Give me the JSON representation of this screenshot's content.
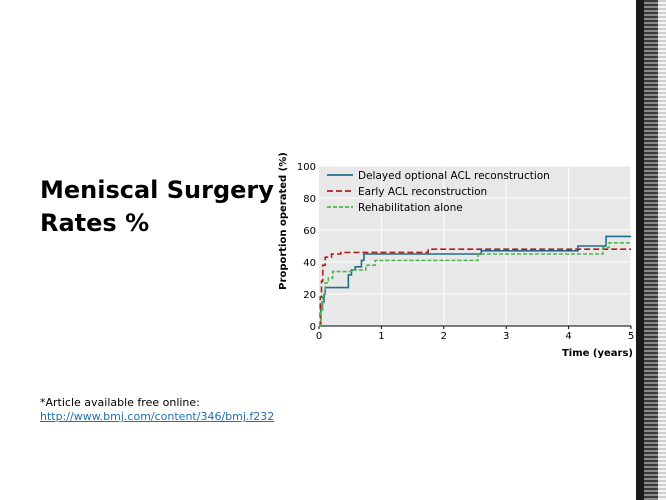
{
  "slide": {
    "title": "Meniscal Surgery\nRates %",
    "footnote_line1": "*Article available free online:",
    "footnote_link": "http://www.bmj.com/content/346/bmj.f232"
  },
  "chart_data": {
    "type": "line",
    "title": "",
    "xlabel": "Time (years)",
    "ylabel": "Proportion operated (%)",
    "xlim": [
      0,
      5
    ],
    "ylim": [
      0,
      100
    ],
    "xticks": [
      0,
      1,
      2,
      3,
      4,
      5
    ],
    "yticks": [
      0,
      20,
      40,
      60,
      80,
      100
    ],
    "grid": true,
    "legend_position": "top-left",
    "series": [
      {
        "name": "Delayed optional ACL reconstruction",
        "color": "#1f6f8b",
        "style": "solid",
        "x": [
          0,
          0.03,
          0.05,
          0.08,
          0.1,
          0.42,
          0.47,
          0.52,
          0.58,
          0.68,
          0.72,
          2.0,
          2.6,
          4.15,
          4.6,
          5.0
        ],
        "y": [
          0,
          10,
          15,
          20,
          24,
          24,
          32,
          35,
          37,
          41,
          45,
          45,
          47,
          50,
          56,
          56
        ]
      },
      {
        "name": "Early ACL reconstruction",
        "color": "#b21e1e",
        "style": "dashed",
        "x": [
          0,
          0.02,
          0.04,
          0.06,
          0.1,
          0.2,
          0.35,
          1.75,
          5.0
        ],
        "y": [
          0,
          18,
          28,
          38,
          43,
          45,
          46,
          48,
          48
        ]
      },
      {
        "name": "Rehabilitation alone",
        "color": "#4ab84a",
        "style": "dashed",
        "x": [
          0,
          0.03,
          0.06,
          0.1,
          0.15,
          0.22,
          0.5,
          0.55,
          0.75,
          0.9,
          2.4,
          2.55,
          4.55,
          4.65,
          5.0
        ],
        "y": [
          0,
          10,
          20,
          27,
          30,
          34,
          34,
          35,
          38,
          41,
          41,
          45,
          49,
          52,
          52
        ]
      }
    ]
  }
}
